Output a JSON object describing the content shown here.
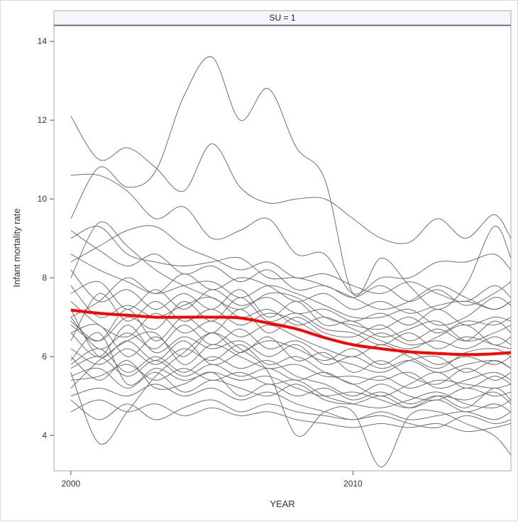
{
  "chart_data": {
    "type": "line",
    "panel_label": "SU = 1",
    "xlabel": "YEAR",
    "ylabel": "Infant mortality rate",
    "xlim": [
      1999.4,
      2015.6
    ],
    "ylim": [
      3.1,
      14.4
    ],
    "x_ticks": [
      2000,
      2010
    ],
    "y_ticks": [
      4,
      6,
      8,
      10,
      12,
      14
    ],
    "grid": false,
    "colors": {
      "individual": "#6e6e6e",
      "mean": "#ff0000",
      "panel_header": "#f3f6fb"
    },
    "years": [
      2000,
      2001,
      2002,
      2003,
      2004,
      2005,
      2006,
      2007,
      2008,
      2009,
      2010,
      2011,
      2012,
      2013,
      2014,
      2015,
      2015.6
    ],
    "mean_series": {
      "values": [
        7.18,
        7.1,
        7.05,
        7.0,
        7.0,
        7.0,
        6.98,
        6.85,
        6.7,
        6.48,
        6.3,
        6.2,
        6.12,
        6.08,
        6.05,
        6.07,
        6.1
      ]
    },
    "series": [
      {
        "values": [
          12.1,
          11.0,
          11.3,
          10.8,
          10.2,
          11.4,
          10.3,
          9.9,
          10.0,
          10.0,
          9.5,
          9.0,
          8.9,
          9.5,
          9.0,
          9.6,
          9.0
        ]
      },
      {
        "values": [
          9.5,
          10.8,
          10.3,
          10.7,
          12.6,
          13.6,
          12.0,
          12.8,
          11.3,
          10.5,
          7.6,
          8.5,
          7.8,
          7.2,
          7.8,
          9.3,
          8.5
        ]
      },
      {
        "values": [
          10.6,
          10.6,
          10.2,
          9.5,
          9.8,
          9.0,
          9.2,
          9.5,
          8.6,
          8.6,
          7.6,
          8.0,
          8.0,
          8.4,
          8.4,
          8.6,
          8.2
        ]
      },
      {
        "values": [
          9.0,
          9.3,
          8.6,
          8.4,
          8.3,
          8.4,
          8.5,
          8.0,
          8.0,
          7.8,
          7.5,
          7.2,
          7.4,
          7.8,
          7.5,
          7.2,
          7.4
        ]
      },
      {
        "values": [
          8.6,
          8.2,
          7.9,
          7.6,
          7.8,
          7.9,
          7.5,
          7.8,
          7.6,
          7.3,
          7.0,
          7.0,
          7.2,
          6.8,
          7.0,
          7.5,
          7.3
        ]
      },
      {
        "values": [
          8.2,
          7.4,
          7.7,
          7.2,
          7.6,
          7.2,
          7.7,
          7.0,
          7.4,
          6.8,
          6.9,
          6.5,
          6.7,
          6.9,
          6.4,
          6.6,
          6.8
        ]
      },
      {
        "values": [
          7.8,
          7.0,
          7.3,
          7.0,
          7.3,
          7.5,
          7.0,
          7.2,
          6.8,
          7.0,
          6.7,
          6.4,
          6.2,
          6.5,
          6.8,
          6.3,
          6.5
        ]
      },
      {
        "values": [
          7.4,
          6.8,
          6.5,
          7.1,
          6.6,
          6.9,
          6.5,
          6.8,
          6.5,
          6.2,
          6.0,
          6.3,
          6.0,
          5.7,
          6.1,
          6.2,
          6.0
        ]
      },
      {
        "values": [
          7.0,
          6.2,
          6.6,
          6.2,
          6.8,
          6.3,
          6.7,
          6.2,
          6.4,
          6.0,
          5.8,
          5.6,
          5.9,
          6.0,
          5.6,
          5.9,
          5.7
        ]
      },
      {
        "values": [
          6.6,
          6.8,
          6.0,
          6.5,
          6.0,
          6.6,
          6.1,
          6.5,
          5.9,
          6.1,
          5.6,
          5.9,
          5.5,
          5.3,
          5.7,
          5.4,
          5.6
        ]
      },
      {
        "values": [
          6.2,
          5.8,
          6.2,
          5.8,
          6.2,
          5.9,
          6.3,
          5.8,
          6.0,
          5.6,
          5.3,
          5.0,
          5.3,
          5.6,
          5.2,
          5.5,
          5.3
        ]
      },
      {
        "values": [
          5.8,
          6.2,
          5.6,
          6.0,
          5.6,
          6.0,
          5.7,
          5.9,
          5.5,
          5.3,
          5.0,
          5.3,
          5.0,
          4.9,
          5.2,
          5.0,
          5.1
        ]
      },
      {
        "values": [
          5.4,
          5.5,
          5.8,
          5.4,
          5.7,
          5.4,
          5.6,
          5.3,
          5.4,
          5.0,
          4.8,
          4.7,
          4.9,
          5.1,
          4.8,
          4.7,
          4.9
        ]
      },
      {
        "values": [
          5.0,
          5.2,
          5.0,
          5.3,
          5.0,
          5.2,
          4.9,
          5.1,
          4.8,
          4.6,
          4.4,
          4.6,
          4.4,
          4.5,
          4.6,
          4.4,
          4.6
        ]
      },
      {
        "values": [
          4.6,
          4.9,
          4.6,
          4.8,
          4.5,
          4.7,
          4.5,
          4.6,
          4.4,
          4.3,
          4.2,
          4.3,
          4.2,
          4.3,
          4.1,
          4.2,
          4.3
        ]
      },
      {
        "values": [
          5.6,
          3.8,
          4.6,
          5.5,
          6.1,
          6.6,
          6.2,
          5.6,
          4.0,
          4.6,
          4.6,
          3.2,
          4.5,
          4.6,
          4.3,
          4.0,
          3.5
        ]
      },
      {
        "values": [
          8.0,
          9.4,
          8.8,
          8.2,
          7.8,
          7.5,
          7.2,
          7.6,
          7.5,
          7.0,
          6.8,
          6.7,
          7.0,
          6.6,
          6.9,
          6.8,
          7.0
        ]
      },
      {
        "values": [
          6.4,
          7.6,
          6.9,
          7.4,
          6.9,
          7.2,
          6.8,
          7.1,
          6.9,
          6.5,
          6.3,
          6.6,
          6.3,
          6.4,
          6.2,
          6.5,
          6.3
        ]
      },
      {
        "values": [
          7.2,
          6.0,
          6.4,
          5.9,
          6.4,
          5.8,
          6.1,
          6.4,
          6.2,
          5.9,
          6.2,
          5.8,
          6.1,
          5.8,
          6.0,
          5.8,
          6.0
        ]
      },
      {
        "values": [
          5.2,
          5.9,
          6.4,
          6.6,
          5.8,
          6.3,
          6.0,
          5.7,
          5.8,
          5.5,
          5.5,
          5.4,
          5.6,
          5.2,
          5.4,
          5.6,
          5.4
        ]
      },
      {
        "values": [
          6.8,
          6.4,
          7.2,
          6.4,
          7.0,
          6.6,
          7.2,
          6.6,
          7.0,
          6.6,
          6.5,
          6.8,
          6.4,
          6.7,
          6.4,
          6.9,
          6.6
        ]
      },
      {
        "values": [
          5.9,
          6.6,
          5.3,
          5.7,
          5.4,
          5.6,
          5.4,
          5.5,
          5.2,
          5.0,
          5.1,
          4.9,
          4.7,
          5.0,
          4.9,
          5.1,
          4.8
        ]
      },
      {
        "values": [
          8.4,
          8.8,
          9.2,
          9.3,
          8.8,
          8.5,
          8.2,
          8.4,
          8.0,
          8.1,
          7.8,
          7.6,
          7.9,
          7.6,
          7.4,
          7.8,
          7.5
        ]
      },
      {
        "values": [
          7.6,
          7.9,
          7.2,
          7.7,
          7.2,
          7.7,
          7.3,
          7.5,
          7.1,
          7.2,
          6.9,
          7.1,
          6.8,
          7.2,
          6.8,
          7.0,
          6.9
        ]
      },
      {
        "values": [
          6.0,
          5.4,
          5.9,
          5.2,
          5.3,
          5.6,
          5.0,
          5.3,
          5.0,
          5.2,
          4.9,
          5.1,
          4.8,
          5.0,
          4.7,
          5.2,
          4.9
        ]
      },
      {
        "values": [
          4.9,
          4.4,
          4.8,
          4.4,
          4.7,
          4.9,
          4.6,
          4.8,
          4.6,
          4.5,
          4.4,
          4.5,
          4.3,
          4.2,
          4.5,
          4.3,
          4.4
        ]
      },
      {
        "values": [
          7.0,
          7.4,
          8.0,
          7.6,
          8.1,
          7.7,
          8.0,
          7.8,
          7.4,
          7.6,
          7.2,
          7.4,
          7.1,
          7.3,
          7.4,
          7.2,
          7.4
        ]
      },
      {
        "values": [
          6.6,
          6.0,
          6.8,
          6.1,
          6.5,
          6.2,
          6.4,
          6.0,
          6.3,
          5.8,
          6.0,
          5.7,
          5.9,
          5.6,
          5.8,
          5.9,
          5.7
        ]
      },
      {
        "values": [
          5.5,
          5.7,
          5.2,
          5.6,
          5.1,
          5.4,
          5.2,
          5.0,
          5.3,
          4.9,
          4.8,
          5.0,
          4.7,
          4.9,
          4.6,
          4.8,
          4.6
        ]
      },
      {
        "values": [
          9.2,
          8.7,
          8.3,
          8.6,
          8.1,
          8.3,
          7.9,
          8.2,
          7.7,
          7.8,
          7.5,
          7.8,
          7.4,
          7.7,
          7.3,
          7.6,
          7.9
        ]
      },
      {
        "values": [
          6.9,
          6.4,
          7.0,
          6.7,
          7.4,
          6.9,
          7.5,
          6.9,
          7.1,
          6.7,
          6.6,
          6.3,
          6.6,
          6.2,
          6.5,
          6.3,
          6.2
        ]
      },
      {
        "values": [
          5.7,
          6.0,
          5.5,
          5.9,
          5.5,
          5.8,
          5.5,
          5.7,
          5.4,
          5.6,
          5.3,
          5.5,
          5.2,
          5.4,
          5.3,
          5.2,
          5.3
        ]
      }
    ]
  }
}
